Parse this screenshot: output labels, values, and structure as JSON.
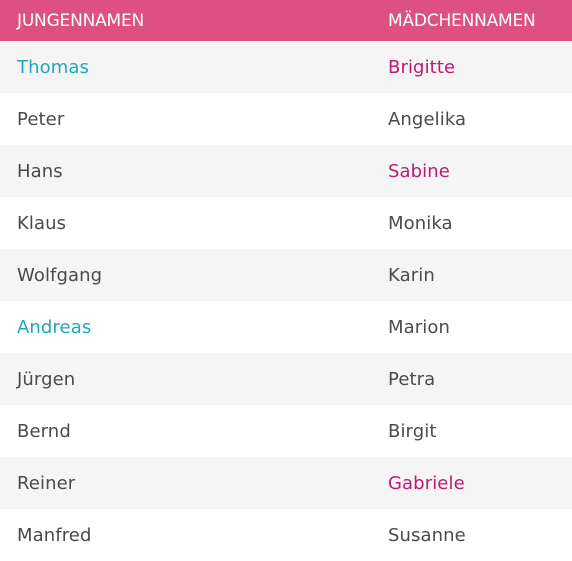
{
  "headers": {
    "boys": "JUNGENNAMEN",
    "girls": "MÄDCHENNAMEN"
  },
  "rows": [
    {
      "boy": "Thomas",
      "girl": "Brigitte",
      "boy_accent": true,
      "girl_accent": true
    },
    {
      "boy": "Peter",
      "girl": "Angelika",
      "boy_accent": false,
      "girl_accent": false
    },
    {
      "boy": "Hans",
      "girl": "Sabine",
      "boy_accent": false,
      "girl_accent": true
    },
    {
      "boy": "Klaus",
      "girl": "Monika",
      "boy_accent": false,
      "girl_accent": false
    },
    {
      "boy": "Wolfgang",
      "girl": "Karin",
      "boy_accent": false,
      "girl_accent": false
    },
    {
      "boy": "Andreas",
      "girl": "Marion",
      "boy_accent": true,
      "girl_accent": false
    },
    {
      "boy": "Jürgen",
      "girl": "Petra",
      "boy_accent": false,
      "girl_accent": false
    },
    {
      "boy": "Bernd",
      "girl": "Birgit",
      "boy_accent": false,
      "girl_accent": false
    },
    {
      "boy": "Reiner",
      "girl": "Gabriele",
      "boy_accent": false,
      "girl_accent": true
    },
    {
      "boy": "Manfred",
      "girl": "Susanne",
      "boy_accent": false,
      "girl_accent": false
    }
  ],
  "colors": {
    "header_background": "#dd5182",
    "header_text": "#ffffff",
    "row_alt_background": "#f5f5f5",
    "row_background": "#ffffff",
    "text_default": "#4a4a4a",
    "boy_accent": "#1fa8bd",
    "girl_accent": "#bb1a72"
  }
}
